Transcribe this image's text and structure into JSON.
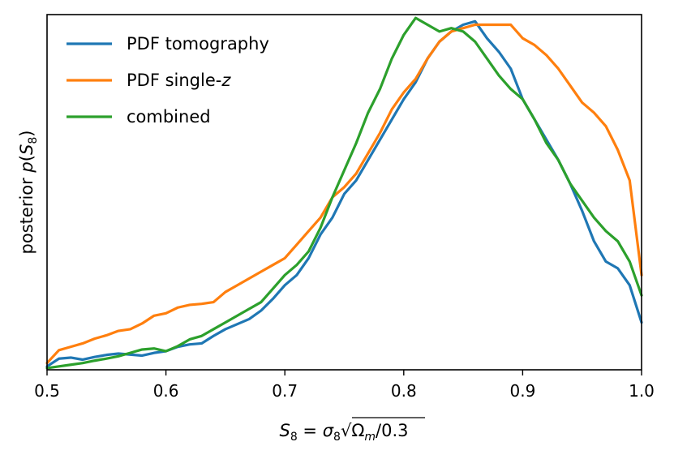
{
  "chart_data": {
    "type": "line",
    "title": "",
    "xlabel": "S_8 = σ_8 √(Ω_m / 0.3)",
    "xlabel_parts": {
      "s": "S",
      "sub8": "8",
      "eq": " = ",
      "sigma": "σ",
      "sub8b": "8",
      "root": "√",
      "omega": "Ω",
      "subm": "m",
      "tail": "/0.3"
    },
    "ylabel": "posterior p(S_8)",
    "ylabel_parts": {
      "prefix": "posterior ",
      "p": "p",
      "open": "(",
      "s": "S",
      "sub8": "8",
      "close": ")"
    },
    "xlim": [
      0.5,
      1.0
    ],
    "ylim": [
      0.0,
      1.05
    ],
    "xticks": [
      0.5,
      0.6,
      0.7,
      0.8,
      0.9,
      1.0
    ],
    "xtick_labels": [
      "0.5",
      "0.6",
      "0.7",
      "0.8",
      "0.9",
      "1.0"
    ],
    "yticks_shown": false,
    "grid": false,
    "legend_position": "top-left",
    "legend_labels": {
      "tomo": "PDF tomography",
      "single_prefix": "PDF single-",
      "single_z": "z",
      "combined": "combined"
    },
    "series": [
      {
        "name": "PDF tomography",
        "color": "#1f77b4",
        "x": [
          0.5,
          0.51,
          0.52,
          0.53,
          0.54,
          0.55,
          0.56,
          0.57,
          0.58,
          0.59,
          0.6,
          0.61,
          0.62,
          0.63,
          0.64,
          0.65,
          0.66,
          0.67,
          0.68,
          0.69,
          0.7,
          0.71,
          0.72,
          0.73,
          0.74,
          0.75,
          0.76,
          0.77,
          0.78,
          0.79,
          0.8,
          0.81,
          0.82,
          0.83,
          0.84,
          0.85,
          0.86,
          0.87,
          0.88,
          0.89,
          0.9,
          0.91,
          0.92,
          0.93,
          0.94,
          0.95,
          0.96,
          0.97,
          0.98,
          0.99,
          1.0
        ],
        "values": [
          0.01,
          0.033,
          0.036,
          0.03,
          0.038,
          0.044,
          0.048,
          0.045,
          0.042,
          0.05,
          0.055,
          0.068,
          0.075,
          0.078,
          0.1,
          0.12,
          0.135,
          0.15,
          0.175,
          0.21,
          0.25,
          0.28,
          0.33,
          0.4,
          0.45,
          0.52,
          0.56,
          0.62,
          0.68,
          0.74,
          0.8,
          0.85,
          0.92,
          0.97,
          1.0,
          1.02,
          1.03,
          0.98,
          0.94,
          0.89,
          0.8,
          0.74,
          0.68,
          0.62,
          0.55,
          0.47,
          0.38,
          0.32,
          0.3,
          0.25,
          0.14
        ]
      },
      {
        "name": "PDF single-z",
        "color": "#ff7f0e",
        "x": [
          0.5,
          0.51,
          0.52,
          0.53,
          0.54,
          0.55,
          0.56,
          0.57,
          0.58,
          0.59,
          0.6,
          0.61,
          0.62,
          0.63,
          0.64,
          0.65,
          0.66,
          0.67,
          0.68,
          0.69,
          0.7,
          0.71,
          0.72,
          0.73,
          0.74,
          0.75,
          0.76,
          0.77,
          0.78,
          0.79,
          0.8,
          0.81,
          0.82,
          0.83,
          0.84,
          0.85,
          0.86,
          0.87,
          0.88,
          0.89,
          0.9,
          0.91,
          0.92,
          0.93,
          0.94,
          0.95,
          0.96,
          0.97,
          0.98,
          0.99,
          1.0
        ],
        "values": [
          0.02,
          0.058,
          0.068,
          0.078,
          0.092,
          0.102,
          0.115,
          0.12,
          0.137,
          0.16,
          0.167,
          0.184,
          0.192,
          0.195,
          0.2,
          0.23,
          0.25,
          0.27,
          0.29,
          0.31,
          0.33,
          0.37,
          0.41,
          0.45,
          0.51,
          0.54,
          0.58,
          0.64,
          0.7,
          0.77,
          0.82,
          0.86,
          0.92,
          0.97,
          1.0,
          1.01,
          1.02,
          1.02,
          1.02,
          1.02,
          0.98,
          0.96,
          0.93,
          0.89,
          0.84,
          0.79,
          0.76,
          0.72,
          0.65,
          0.56,
          0.28
        ]
      },
      {
        "name": "combined",
        "color": "#2ca02c",
        "x": [
          0.5,
          0.51,
          0.52,
          0.53,
          0.54,
          0.55,
          0.56,
          0.57,
          0.58,
          0.59,
          0.6,
          0.61,
          0.62,
          0.63,
          0.64,
          0.65,
          0.66,
          0.67,
          0.68,
          0.69,
          0.7,
          0.71,
          0.72,
          0.73,
          0.74,
          0.75,
          0.76,
          0.77,
          0.78,
          0.79,
          0.8,
          0.81,
          0.82,
          0.83,
          0.84,
          0.85,
          0.86,
          0.87,
          0.88,
          0.89,
          0.9,
          0.91,
          0.92,
          0.93,
          0.94,
          0.95,
          0.96,
          0.97,
          0.98,
          0.99,
          1.0
        ],
        "values": [
          0.005,
          0.01,
          0.015,
          0.02,
          0.027,
          0.033,
          0.04,
          0.05,
          0.06,
          0.063,
          0.055,
          0.07,
          0.09,
          0.1,
          0.12,
          0.14,
          0.16,
          0.18,
          0.2,
          0.24,
          0.28,
          0.31,
          0.35,
          0.42,
          0.51,
          0.59,
          0.67,
          0.76,
          0.83,
          0.92,
          0.99,
          1.04,
          1.02,
          1.0,
          1.01,
          1.0,
          0.97,
          0.92,
          0.87,
          0.83,
          0.8,
          0.74,
          0.67,
          0.62,
          0.55,
          0.5,
          0.45,
          0.41,
          0.38,
          0.32,
          0.22
        ]
      }
    ]
  }
}
